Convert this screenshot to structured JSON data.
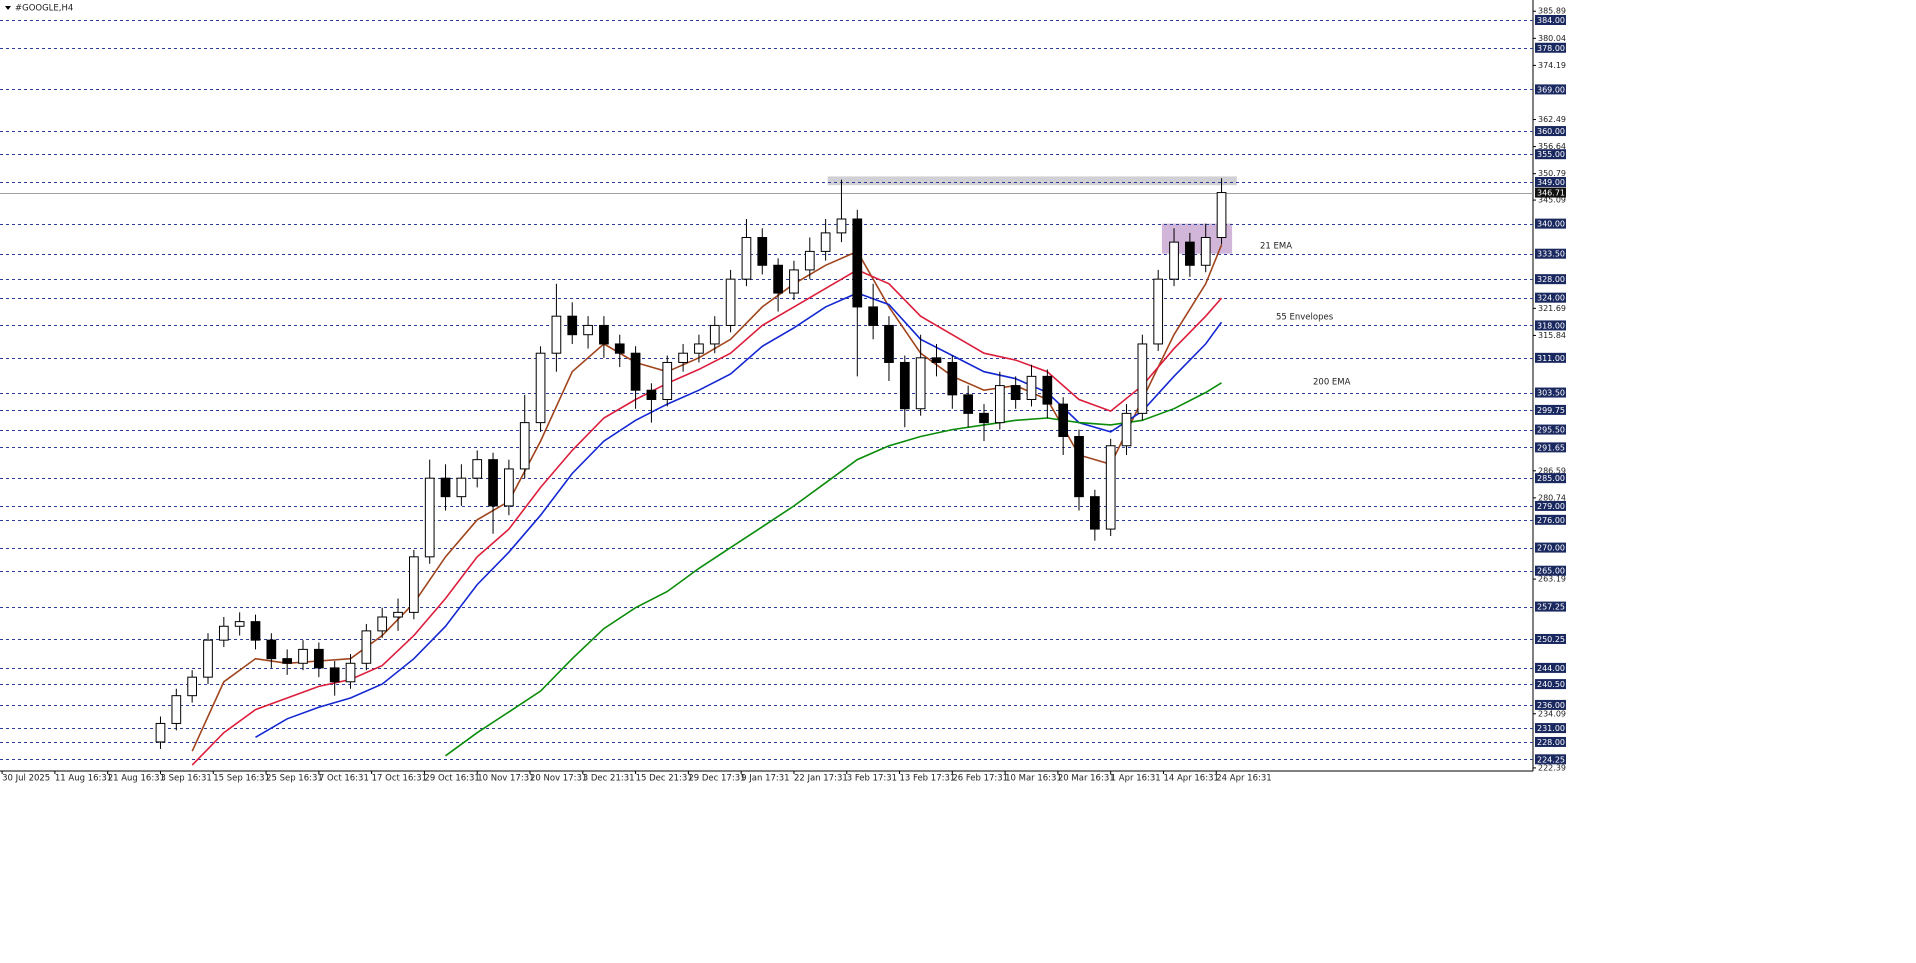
{
  "chart_data": {
    "type": "candlestick",
    "title": "#GOOGLE,H4",
    "xlim": [
      -0.4,
      290
    ],
    "ylim": [
      221.94,
      388.32
    ],
    "candle_color": "#000000",
    "candles": {
      "x": [
        30,
        33,
        36,
        39,
        42,
        45,
        48,
        51,
        54,
        57,
        60,
        63,
        66,
        69,
        72,
        75,
        78,
        81,
        84,
        87,
        90,
        93,
        96,
        99,
        102,
        105,
        108,
        111,
        114,
        117,
        120,
        123,
        126,
        129,
        132,
        135,
        138,
        141,
        144,
        147,
        150,
        153,
        156,
        159,
        162,
        165,
        168,
        171,
        174,
        177,
        180,
        183,
        186,
        189,
        192,
        195,
        198,
        201,
        204,
        207,
        210,
        213,
        216,
        219,
        222,
        225,
        228,
        231
      ],
      "open": [
        228,
        232,
        238,
        242,
        250,
        253,
        254,
        250,
        246,
        245,
        248,
        244,
        241,
        245,
        252,
        255,
        256,
        268,
        285,
        281,
        285,
        289,
        279,
        287,
        297,
        312,
        320,
        316,
        318,
        314,
        312,
        304,
        302,
        310,
        312,
        314,
        318,
        328,
        337,
        331,
        325,
        330,
        334,
        338,
        341,
        322,
        318,
        310,
        300,
        311,
        310,
        303,
        299,
        297,
        305,
        302,
        307,
        301,
        294,
        281,
        274,
        292,
        299,
        314,
        328,
        336,
        331,
        337
      ],
      "high": [
        233.5,
        239.5,
        243.5,
        251.5,
        255,
        256,
        255.5,
        251.5,
        248,
        250,
        249.5,
        245.5,
        247,
        253.5,
        257,
        259,
        269.5,
        289,
        288,
        288,
        291,
        290.5,
        289,
        303,
        313.5,
        327,
        323,
        320,
        320,
        316,
        313.5,
        305.5,
        311.5,
        314,
        316,
        320,
        330,
        341,
        339,
        332.5,
        332,
        337,
        341,
        349.5,
        343,
        327,
        320,
        311.5,
        316,
        314,
        311.5,
        305,
        301,
        308,
        307,
        309.5,
        308.5,
        302.5,
        295.5,
        282.5,
        293.5,
        301,
        316,
        330,
        339,
        338,
        340,
        349.8
      ],
      "low": [
        226.5,
        230.5,
        236.5,
        240.5,
        248.5,
        251,
        248,
        244,
        242.5,
        243.5,
        242,
        238,
        239.5,
        243.5,
        250.5,
        252,
        254.5,
        266.5,
        278,
        279,
        283,
        273,
        277,
        285,
        295,
        308,
        314,
        313,
        311,
        309,
        300,
        297,
        300.5,
        308,
        310,
        312,
        316.5,
        326.5,
        329,
        321,
        323.5,
        328,
        332,
        336,
        307,
        315,
        306,
        296,
        298.5,
        307,
        300,
        296,
        293,
        295.5,
        300,
        300.5,
        298,
        290,
        278,
        271.5,
        272.5,
        290,
        297.5,
        312.5,
        326.5,
        328.5,
        329.5,
        335.5
      ],
      "close": [
        232,
        238,
        242,
        250,
        253,
        254,
        250,
        246,
        245,
        248,
        244,
        241,
        245,
        252,
        255,
        256,
        268,
        285,
        281,
        285,
        289,
        279,
        287,
        297,
        312,
        320,
        316,
        318,
        314,
        312,
        304,
        302,
        310,
        312,
        314,
        318,
        328,
        337,
        331,
        325,
        330,
        334,
        338,
        341,
        322,
        318,
        310,
        300,
        311,
        310,
        303,
        299,
        297,
        305,
        302,
        307,
        301,
        294,
        281,
        274,
        292,
        299,
        314,
        328,
        336,
        331,
        337,
        346.71
      ]
    },
    "line_x": [
      36,
      42,
      48,
      54,
      60,
      66,
      72,
      78,
      84,
      90,
      96,
      102,
      108,
      114,
      120,
      126,
      132,
      138,
      144,
      150,
      156,
      162,
      168,
      174,
      180,
      186,
      192,
      198,
      204,
      210,
      216,
      222,
      228,
      231
    ],
    "series": [
      {
        "name": "21 EMA",
        "color": "#a0451e",
        "values": [
          226,
          241,
          246,
          245,
          245.5,
          246,
          251,
          258,
          268,
          276,
          280,
          293,
          308,
          314,
          310,
          308,
          311,
          315,
          322,
          327,
          331,
          334,
          322,
          312,
          307,
          304,
          305,
          302,
          290,
          288,
          302,
          316,
          327,
          335.4
        ]
      },
      {
        "color": "#dc1e3c",
        "values": [
          223,
          230,
          235,
          237.5,
          240,
          241.5,
          244.5,
          251,
          259,
          268,
          274,
          283,
          291,
          298,
          302,
          305.5,
          308.5,
          312,
          318,
          322,
          326,
          330,
          327,
          320,
          316,
          312,
          310.5,
          308,
          302,
          299.5,
          305,
          313,
          320,
          323.9
        ]
      },
      {
        "name": "55 Envelopes",
        "color": "#1428d2",
        "values": [
          null,
          null,
          229,
          233,
          235.5,
          237.5,
          240.5,
          246,
          253,
          262,
          269,
          277,
          286,
          293,
          297.5,
          301,
          304,
          307.5,
          313.5,
          317.5,
          322,
          325,
          322.5,
          315,
          311.5,
          308,
          306.5,
          303.5,
          297,
          295,
          299.5,
          307,
          314,
          318.7
        ]
      },
      {
        "name": "200 EMA",
        "color": "#0a8c0a",
        "values": [
          null,
          null,
          null,
          null,
          null,
          null,
          null,
          null,
          225,
          230,
          234.5,
          239,
          246,
          252.5,
          257,
          260.5,
          265.5,
          270,
          274.5,
          279,
          284,
          289,
          292,
          294,
          295.5,
          296.5,
          297.5,
          298,
          297,
          296.5,
          297.5,
          300,
          303.5,
          305.6
        ]
      }
    ],
    "zones": [
      {
        "x0": 156.4,
        "x1": 233.9,
        "y0": 348.3,
        "y1": 350.2,
        "color": "#c8c8cc"
      },
      {
        "x0": 219.7,
        "x1": 233,
        "y0": 333.5,
        "y1": 340,
        "color": "#c9a9d2"
      }
    ],
    "yticks": [
      385.89,
      380.04,
      374.19,
      362.49,
      356.64,
      350.79,
      345.09,
      321.69,
      315.84,
      286.59,
      280.74,
      263.19,
      234.09,
      222.39
    ],
    "levels": [
      {
        "value": 384,
        "label": "384.00"
      },
      {
        "value": 378,
        "label": "378.00"
      },
      {
        "value": 369,
        "label": "369.00"
      },
      {
        "value": 360,
        "label": "360.00"
      },
      {
        "value": 355,
        "label": "355.00"
      },
      {
        "value": 349,
        "label": "349.00"
      },
      {
        "value": 340,
        "label": "340.00"
      },
      {
        "value": 333.5,
        "label": "333.50"
      },
      {
        "value": 328,
        "label": "328.00"
      },
      {
        "value": 324,
        "label": "324.00"
      },
      {
        "value": 318,
        "label": "318.00"
      },
      {
        "value": 311,
        "label": "311.00"
      },
      {
        "value": 303.5,
        "label": "303.50"
      },
      {
        "value": 299.75,
        "label": "299.75"
      },
      {
        "value": 295.5,
        "label": "295.50"
      },
      {
        "value": 291.65,
        "label": "291.65"
      },
      {
        "value": 285,
        "label": "285.00"
      },
      {
        "value": 279,
        "label": "279.00"
      },
      {
        "value": 276,
        "label": "276.00"
      },
      {
        "value": 270,
        "label": "270.00"
      },
      {
        "value": 265,
        "label": "265.00"
      },
      {
        "value": 257.25,
        "label": "257.25"
      },
      {
        "value": 250.25,
        "label": "250.25"
      },
      {
        "value": 244,
        "label": "244.00"
      },
      {
        "value": 240.5,
        "label": "240.50"
      },
      {
        "value": 236,
        "label": "236.00"
      },
      {
        "value": 231,
        "label": "231.00"
      },
      {
        "value": 228,
        "label": "228.00"
      },
      {
        "value": 224.25,
        "label": "224.25"
      }
    ],
    "level_color": "#2a3c96",
    "current_price": 346.71,
    "xticks": [
      {
        "value": 0,
        "label": "30 Jul 2025"
      },
      {
        "value": 10,
        "label": "11 Aug 16:31"
      },
      {
        "value": 20,
        "label": "21 Aug 16:31"
      },
      {
        "value": 30,
        "label": "3 Sep 16:31"
      },
      {
        "value": 40,
        "label": "15 Sep 16:31"
      },
      {
        "value": 50,
        "label": "25 Sep 16:31"
      },
      {
        "value": 60,
        "label": "7 Oct 16:31"
      },
      {
        "value": 70,
        "label": "17 Oct 16:31"
      },
      {
        "value": 80,
        "label": "29 Oct 16:31"
      },
      {
        "value": 90,
        "label": "10 Nov 17:31"
      },
      {
        "value": 100,
        "label": "20 Nov 17:31"
      },
      {
        "value": 110,
        "label": "3 Dec 21:31"
      },
      {
        "value": 120,
        "label": "15 Dec 21:31"
      },
      {
        "value": 130,
        "label": "29 Dec 17:31"
      },
      {
        "value": 140,
        "label": "9 Jan 17:31"
      },
      {
        "value": 150,
        "label": "22 Jan 17:31"
      },
      {
        "value": 160,
        "label": "3 Feb 17:31"
      },
      {
        "value": 170,
        "label": "13 Feb 17:31"
      },
      {
        "value": 180,
        "label": "26 Feb 17:31"
      },
      {
        "value": 190,
        "label": "10 Mar 16:31"
      },
      {
        "value": 200,
        "label": "20 Mar 16:31"
      },
      {
        "value": 210,
        "label": "1 Apr 16:31"
      },
      {
        "value": 220,
        "label": "14 Apr 16:31"
      },
      {
        "value": 230,
        "label": "24 Apr 16:31"
      }
    ]
  }
}
